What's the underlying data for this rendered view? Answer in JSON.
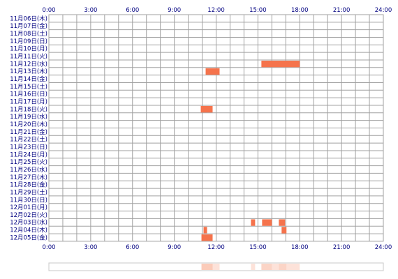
{
  "chart_data": {
    "type": "heatmap",
    "x_ticks": [
      "0:00",
      "3:00",
      "6:00",
      "9:00",
      "12:00",
      "15:00",
      "18:00",
      "21:00",
      "24:00"
    ],
    "xlim": [
      0,
      24
    ],
    "rows": [
      "11月06日(木)",
      "11月07日(金)",
      "11月08日(土)",
      "11月09日(日)",
      "11月10日(月)",
      "11月11日(火)",
      "11月12日(水)",
      "11月13日(木)",
      "11月14日(金)",
      "11月15日(土)",
      "11月16日(日)",
      "11月17日(月)",
      "11月18日(火)",
      "11月19日(水)",
      "11月20日(木)",
      "11月21日(金)",
      "11月22日(土)",
      "11月23日(日)",
      "11月24日(月)",
      "11月25日(火)",
      "11月26日(水)",
      "11月27日(木)",
      "11月28日(金)",
      "11月29日(土)",
      "11月30日(日)",
      "12月01日(月)",
      "12月02日(火)",
      "12月03日(水)",
      "12月04日(木)",
      "12月05日(金)"
    ],
    "activity": [
      {
        "day": "11月12日(水)",
        "start": 15.25,
        "end": 18.0
      },
      {
        "day": "11月13日(木)",
        "start": 11.25,
        "end": 12.25
      },
      {
        "day": "11月18日(火)",
        "start": 10.9,
        "end": 11.75
      },
      {
        "day": "12月03日(水)",
        "start": 14.5,
        "end": 14.8
      },
      {
        "day": "12月03日(水)",
        "start": 15.3,
        "end": 16.0
      },
      {
        "day": "12月03日(水)",
        "start": 16.5,
        "end": 16.95
      },
      {
        "day": "12月04日(木)",
        "start": 11.1,
        "end": 11.35
      },
      {
        "day": "12月04日(木)",
        "start": 16.7,
        "end": 17.05
      },
      {
        "day": "12月05日(金)",
        "start": 10.95,
        "end": 11.75
      }
    ],
    "summary_bar": [
      {
        "start": 10.95,
        "end": 11.75,
        "intensity": 0.55
      },
      {
        "start": 11.75,
        "end": 12.25,
        "intensity": 0.3
      },
      {
        "start": 14.5,
        "end": 14.8,
        "intensity": 0.3
      },
      {
        "start": 15.25,
        "end": 16.0,
        "intensity": 0.45
      },
      {
        "start": 16.0,
        "end": 16.5,
        "intensity": 0.3
      },
      {
        "start": 16.5,
        "end": 17.05,
        "intensity": 0.45
      },
      {
        "start": 17.05,
        "end": 18.0,
        "intensity": 0.3
      }
    ],
    "grid": true,
    "colors": {
      "activity": "#f5734c",
      "grid": "#a0a0a0",
      "label": "#000080",
      "summary_border": "#c8c8c8",
      "summary_fill": "#f7a080"
    }
  }
}
